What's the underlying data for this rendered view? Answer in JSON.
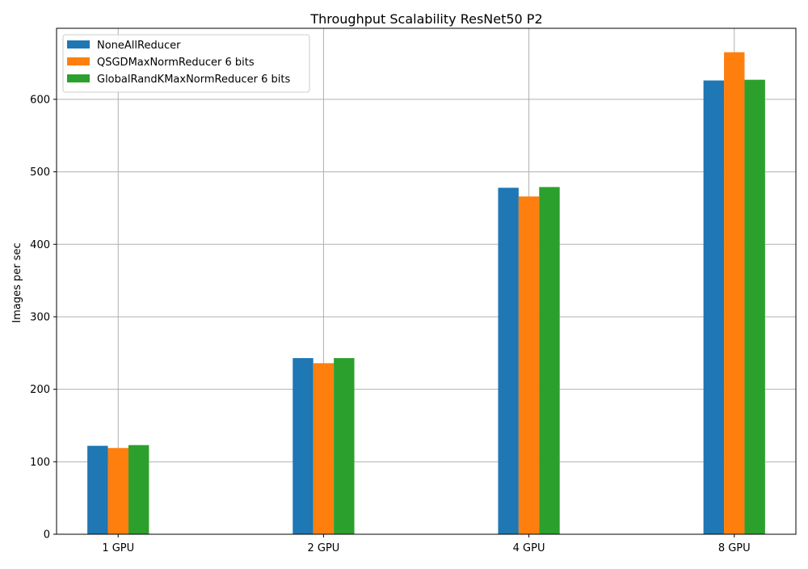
{
  "chart_data": {
    "type": "bar",
    "title": "Throughput Scalability ResNet50 P2",
    "xlabel": "",
    "ylabel": "Images per sec",
    "categories": [
      "1 GPU",
      "2 GPU",
      "4 GPU",
      "8 GPU"
    ],
    "series": [
      {
        "name": "NoneAllReducer",
        "color": "#1f77b4",
        "values": [
          122,
          243,
          478,
          626
        ]
      },
      {
        "name": "QSGDMaxNormReducer 6 bits",
        "color": "#ff7f0e",
        "values": [
          119,
          236,
          466,
          665
        ]
      },
      {
        "name": "GlobalRandKMaxNormReducer 6 bits",
        "color": "#2ca02c",
        "values": [
          123,
          243,
          479,
          627
        ]
      }
    ],
    "ylim": [
      0,
      698
    ],
    "yticks": [
      0,
      100,
      200,
      300,
      400,
      500,
      600
    ],
    "grid": true,
    "legend_position": "top-left"
  }
}
